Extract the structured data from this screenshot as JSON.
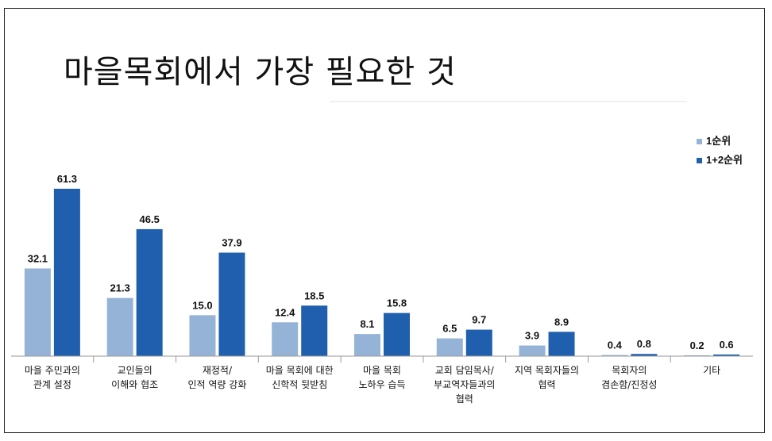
{
  "chart_data": {
    "type": "bar",
    "title": "마을목회에서 가장 필요한 것",
    "categories": [
      [
        "마을 주민과의",
        "관계 설정"
      ],
      [
        "교인들의",
        "이해와 협조"
      ],
      [
        "재정적/",
        "인적 역량 강화"
      ],
      [
        "마을 목회에 대한",
        "신학적 뒷받침"
      ],
      [
        "마을 목회",
        "노하우 습득"
      ],
      [
        "교회 담임목사/",
        "부교역자들과의",
        "협력"
      ],
      [
        "지역 목회자들의",
        "협력"
      ],
      [
        "목회자의",
        "겸손함/진정성"
      ],
      [
        "기타"
      ]
    ],
    "series": [
      {
        "name": "1순위",
        "color": "#95B3D7",
        "values": [
          32.1,
          21.3,
          15.0,
          12.4,
          8.1,
          6.5,
          3.9,
          0.4,
          0.2
        ],
        "labels": [
          "32.1",
          "21.3",
          "15.0",
          "12.4",
          "8.1",
          "6.5",
          "3.9",
          "0.4",
          "0.2"
        ]
      },
      {
        "name": "1+2순위",
        "color": "#1F5FAD",
        "values": [
          61.3,
          46.5,
          37.9,
          18.5,
          15.8,
          9.7,
          8.9,
          0.8,
          0.6
        ],
        "labels": [
          "61.3",
          "46.5",
          "37.9",
          "18.5",
          "15.8",
          "9.7",
          "8.9",
          "0.8",
          "0.6"
        ]
      }
    ],
    "ylim": [
      0,
      70
    ],
    "legend_position": "right",
    "grid": false
  }
}
